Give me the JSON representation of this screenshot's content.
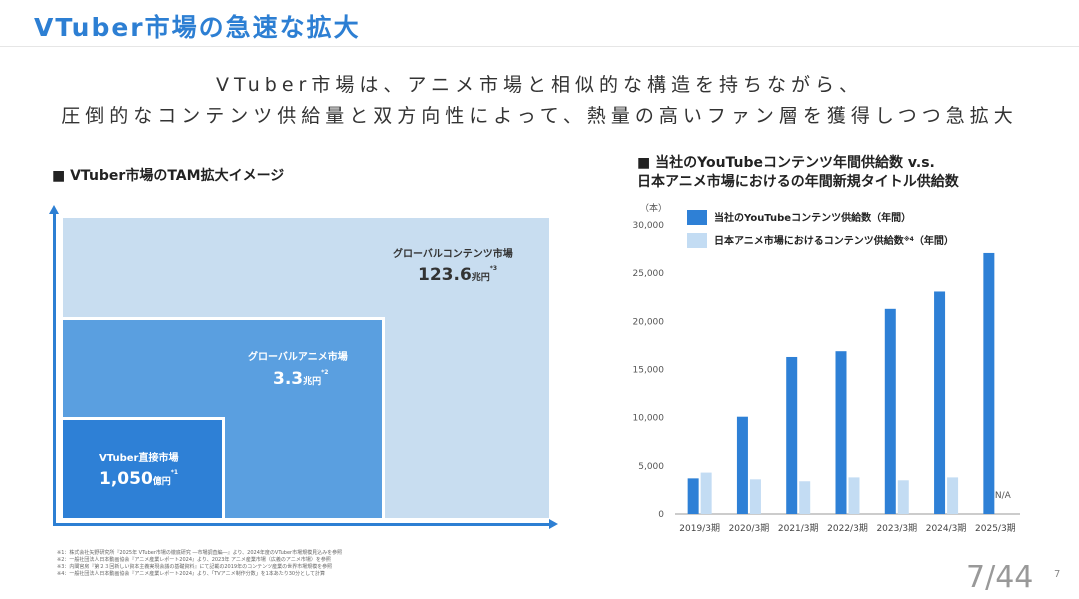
{
  "title": "VTuber市場の急速な拡大",
  "subtitle": {
    "line1": "VTuber市場は、アニメ市場と相似的な構造を持ちながら、",
    "line2": "圧倒的なコンテンツ供給量と双方向性によって、熱量の高いファン層を獲得しつつ急拡大"
  },
  "left": {
    "heading": "■ VTuber市場のTAM拡大イメージ",
    "global": {
      "label": "グローバルコンテンツ市場",
      "value": "123.6",
      "unit": "兆円",
      "note": "*3"
    },
    "anime": {
      "label": "グローバルアニメ市場",
      "value": "3.3",
      "unit": "兆円",
      "note": "*2"
    },
    "vtuber": {
      "label": "VTuber直接市場",
      "value": "1,050",
      "unit": "億円",
      "note": "*1"
    },
    "colors": {
      "global": "#c8ddf0",
      "anime": "#5a9fe0",
      "vtuber": "#2e80d6",
      "axis": "#2d7fd3"
    }
  },
  "right": {
    "heading_line1": "■ 当社のYouTubeコンテンツ年間供給数 v.s.",
    "heading_line2": "日本アニメ市場におけるの年間新規タイトル供給数"
  },
  "chart_data": {
    "type": "bar",
    "unit_label": "（本）",
    "categories": [
      "2019/3期",
      "2020/3期",
      "2021/3期",
      "2022/3期",
      "2023/3期",
      "2024/3期",
      "2025/3期"
    ],
    "series": [
      {
        "name": "当社のYouTubeコンテンツ供給数（年間）",
        "color": "#2e80d6",
        "values": [
          3700,
          10100,
          16300,
          16900,
          21300,
          23100,
          27100
        ]
      },
      {
        "name": "日本アニメ市場におけるコンテンツ供給数",
        "name_note": "※4",
        "name_suffix": "（年間）",
        "color": "#c3dcf3",
        "values": [
          4300,
          3600,
          3400,
          3800,
          3500,
          3800,
          null
        ]
      }
    ],
    "na_label": "N/A",
    "ylim": [
      0,
      30000
    ],
    "yticks": [
      "0",
      "5,000",
      "10,000",
      "15,000",
      "20,000",
      "25,000",
      "30,000"
    ]
  },
  "footnotes": [
    "※1：株式会社矢野研究所『2025年 VTuber市場の徹底研究 ―市場調査編―』より、2024年度のVTuber市場規模見込みを参照",
    "※2：一般社団法人日本動画協会『アニメ産業レポート2024』より、2023年 アニメ産業市場（広義のアニメ市場）を参照",
    "※3：内閣官房『第２３回新しい資本主義実現会議の基礎資料』にて記載の2019年のコンテンツ産業の世界市場規模を参照",
    "※4：一般社団法人日本動画協会『アニメ産業レポート2024』より、「TVアニメ制作分数」を1本あたり30分として計算"
  ],
  "page": {
    "counter": "7/44",
    "number": "7"
  }
}
